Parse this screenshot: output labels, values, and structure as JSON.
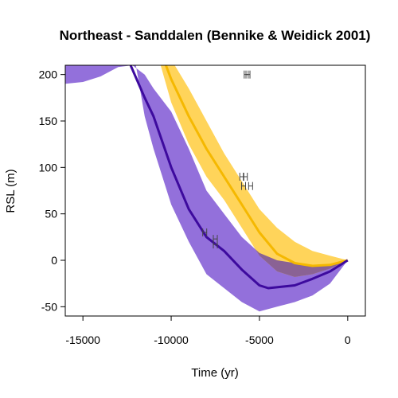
{
  "chart_data": {
    "type": "line",
    "title": "Northeast - Sanddalen (Bennike & Weidick 2001)",
    "xlabel": "Time (yr)",
    "ylabel": "RSL (m)",
    "xlim": [
      -16000,
      1000
    ],
    "ylim": [
      -60,
      210
    ],
    "x_ticks": [
      -15000,
      -10000,
      -5000,
      0
    ],
    "x_tick_labels": [
      "-15000",
      "-10000",
      "-5000",
      "0"
    ],
    "y_ticks": [
      -50,
      0,
      50,
      100,
      150,
      200
    ],
    "y_tick_labels": [
      "-50",
      "0",
      "50",
      "100",
      "150",
      "200"
    ],
    "grid": false,
    "legend": "none",
    "colors": {
      "purple_band": "#9370db",
      "purple_line": "#3d0a9e",
      "yellow_band": "#ffd45a",
      "yellow_line": "#f5b800",
      "overlap": "#8a6294",
      "marker": "#444444"
    },
    "series": [
      {
        "line": [
          [
            -12300,
            210
          ],
          [
            -11500,
            175
          ],
          [
            -11000,
            155
          ],
          [
            -10000,
            100
          ],
          [
            -9000,
            55
          ],
          [
            -8000,
            25
          ],
          [
            -7000,
            10
          ],
          [
            -6000,
            -10
          ],
          [
            -5000,
            -27
          ],
          [
            -4500,
            -30
          ],
          [
            -3000,
            -27
          ],
          [
            -2000,
            -20
          ],
          [
            -1000,
            -12
          ],
          [
            0,
            0
          ]
        ],
        "upper": [
          [
            -16000,
            190
          ],
          [
            -15000,
            192
          ],
          [
            -14000,
            198
          ],
          [
            -13000,
            208
          ],
          [
            -12200,
            210
          ],
          [
            -11500,
            200
          ],
          [
            -11000,
            185
          ],
          [
            -10000,
            160
          ],
          [
            -9000,
            120
          ],
          [
            -8000,
            75
          ],
          [
            -7000,
            50
          ],
          [
            -6000,
            25
          ],
          [
            -5000,
            8
          ],
          [
            -4000,
            0
          ],
          [
            -3000,
            -3
          ],
          [
            -2000,
            -5
          ],
          [
            -1000,
            -4
          ],
          [
            0,
            0
          ]
        ],
        "lower": [
          [
            -16000,
            210
          ],
          [
            -12000,
            210
          ],
          [
            -11500,
            155
          ],
          [
            -11000,
            120
          ],
          [
            -10000,
            60
          ],
          [
            -9000,
            20
          ],
          [
            -8000,
            -15
          ],
          [
            -7000,
            -30
          ],
          [
            -6000,
            -45
          ],
          [
            -5000,
            -55
          ],
          [
            -4000,
            -50
          ],
          [
            -3000,
            -45
          ],
          [
            -2000,
            -38
          ],
          [
            -1000,
            -25
          ],
          [
            0,
            0
          ]
        ]
      },
      {
        "line": [
          [
            -10300,
            210
          ],
          [
            -10000,
            195
          ],
          [
            -9000,
            155
          ],
          [
            -8000,
            120
          ],
          [
            -7000,
            90
          ],
          [
            -6000,
            60
          ],
          [
            -5000,
            30
          ],
          [
            -4000,
            7
          ],
          [
            -3000,
            -3
          ],
          [
            -2000,
            -6
          ],
          [
            -1000,
            -5
          ],
          [
            0,
            0
          ]
        ],
        "upper": [
          [
            -9800,
            210
          ],
          [
            -9000,
            185
          ],
          [
            -8000,
            150
          ],
          [
            -7000,
            115
          ],
          [
            -6000,
            85
          ],
          [
            -5000,
            55
          ],
          [
            -4000,
            35
          ],
          [
            -3000,
            20
          ],
          [
            -2000,
            10
          ],
          [
            -1000,
            5
          ],
          [
            0,
            0
          ]
        ],
        "lower": [
          [
            -10600,
            210
          ],
          [
            -10000,
            170
          ],
          [
            -9000,
            125
          ],
          [
            -8000,
            90
          ],
          [
            -7000,
            65
          ],
          [
            -6000,
            35
          ],
          [
            -5000,
            5
          ],
          [
            -4000,
            -12
          ],
          [
            -3000,
            -18
          ],
          [
            -2000,
            -15
          ],
          [
            -1000,
            -9
          ],
          [
            0,
            0
          ]
        ]
      }
    ],
    "points": [
      {
        "x": -5750,
        "y": 200
      },
      {
        "x": -5650,
        "y": 200
      },
      {
        "x": -6000,
        "y": 90
      },
      {
        "x": -5800,
        "y": 90
      },
      {
        "x": -5900,
        "y": 80
      },
      {
        "x": -5500,
        "y": 80
      },
      {
        "x": -8100,
        "y": 30
      },
      {
        "x": -7500,
        "y": 23
      },
      {
        "x": -7500,
        "y": 17
      }
    ]
  }
}
